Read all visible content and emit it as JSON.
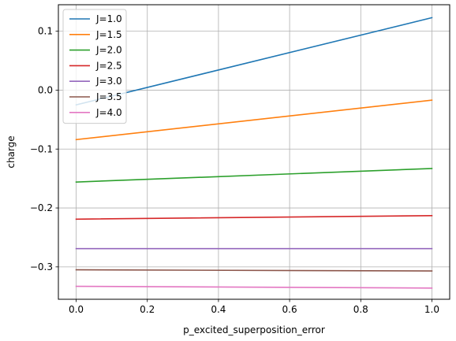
{
  "chart_data": {
    "type": "line",
    "title": "",
    "xlabel": "p_excited_superposition_error",
    "ylabel": "charge",
    "xlim": [
      -0.05,
      1.05
    ],
    "ylim": [
      -0.355,
      0.145
    ],
    "xticks": [
      0.0,
      0.2,
      0.4,
      0.6,
      0.8,
      1.0
    ],
    "xtick_labels": [
      "0.0",
      "0.2",
      "0.4",
      "0.6",
      "0.8",
      "1.0"
    ],
    "yticks": [
      -0.3,
      -0.2,
      -0.1,
      0.0,
      0.1
    ],
    "ytick_labels": [
      "−0.3",
      "−0.2",
      "−0.1",
      "0.0",
      "0.1"
    ],
    "grid": true,
    "legend_position": "top-left",
    "x": [
      0.0,
      1.0
    ],
    "series": [
      {
        "name": "J=1.0",
        "color": "#1f77b4",
        "values": [
          -0.025,
          0.123
        ]
      },
      {
        "name": "J=1.5",
        "color": "#ff7f0e",
        "values": [
          -0.084,
          -0.017
        ]
      },
      {
        "name": "J=2.0",
        "color": "#2ca02c",
        "values": [
          -0.156,
          -0.133
        ]
      },
      {
        "name": "J=2.5",
        "color": "#d62728",
        "values": [
          -0.219,
          -0.213
        ]
      },
      {
        "name": "J=3.0",
        "color": "#9467bd",
        "values": [
          -0.269,
          -0.269
        ]
      },
      {
        "name": "J=3.5",
        "color": "#8c564b",
        "values": [
          -0.305,
          -0.307
        ]
      },
      {
        "name": "J=4.0",
        "color": "#e377c2",
        "values": [
          -0.333,
          -0.336
        ]
      }
    ]
  }
}
